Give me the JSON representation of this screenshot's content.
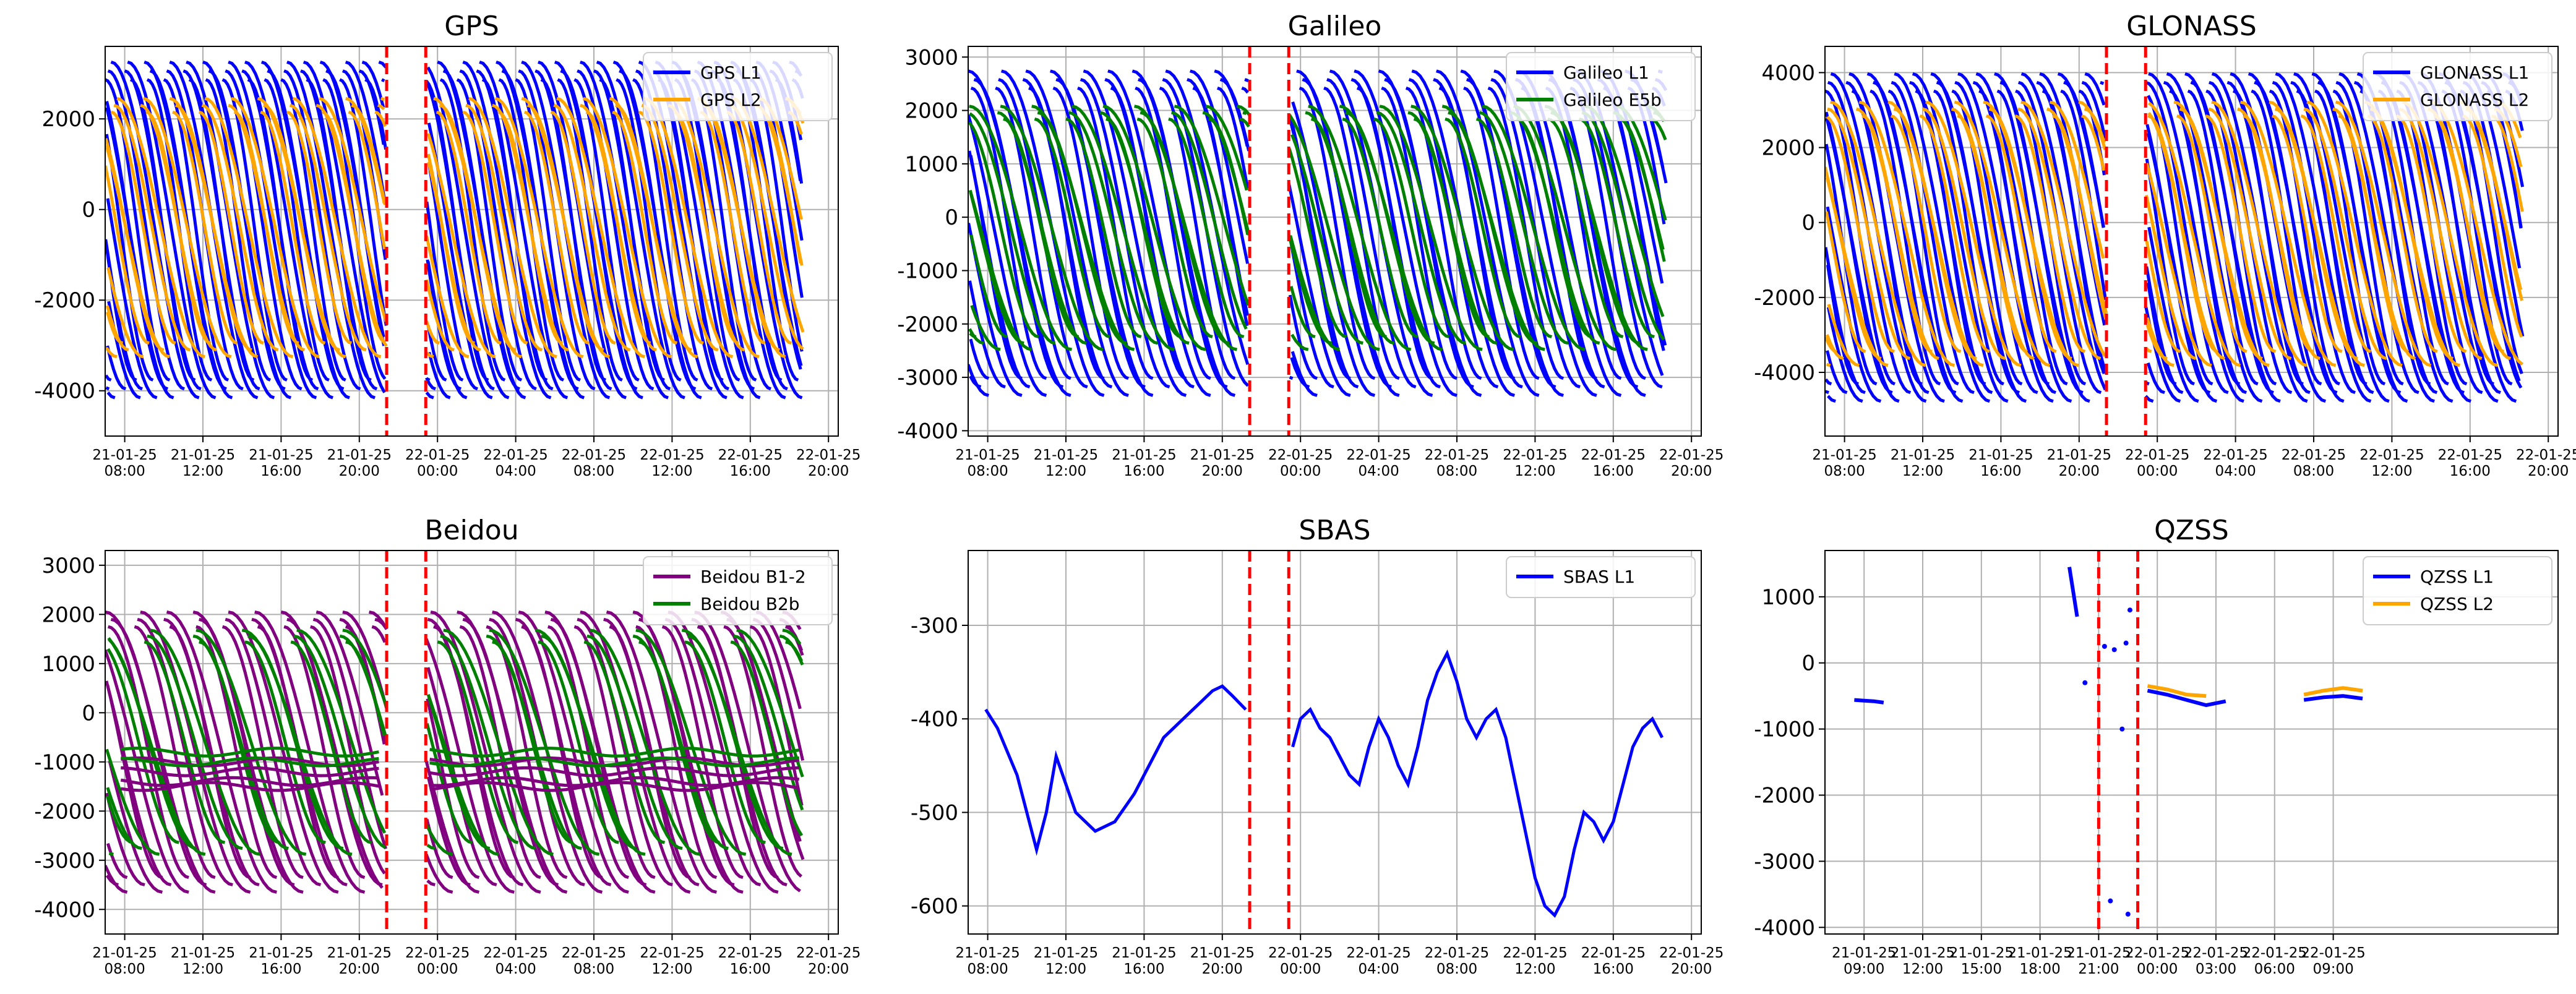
{
  "chart_data": [
    {
      "type": "line",
      "title": "GPS",
      "ylim": [
        -5000,
        3600
      ],
      "yticks": [
        2000,
        0,
        -2000,
        -4000
      ],
      "xlim": [
        7.0,
        44.5
      ],
      "xticks": [
        8,
        12,
        16,
        20,
        24,
        28,
        32,
        36,
        40,
        44
      ],
      "xticklabels": [
        [
          "21-01-25",
          "08:00"
        ],
        [
          "21-01-25",
          "12:00"
        ],
        [
          "21-01-25",
          "16:00"
        ],
        [
          "21-01-25",
          "20:00"
        ],
        [
          "22-01-25",
          "00:00"
        ],
        [
          "22-01-25",
          "04:00"
        ],
        [
          "22-01-25",
          "08:00"
        ],
        [
          "22-01-25",
          "12:00"
        ],
        [
          "22-01-25",
          "16:00"
        ],
        [
          "22-01-25",
          "20:00"
        ]
      ],
      "grid": true,
      "legend_position": "top-right",
      "vlines": [
        21.4,
        23.4
      ],
      "gap": [
        21.4,
        23.4
      ],
      "series": [
        {
          "name": "GPS L1",
          "color": "#0000ff",
          "pattern": "descending-arcs",
          "amplitude": 3900,
          "offset": -450,
          "period": 6.0,
          "phase": 0.0,
          "count": 6
        },
        {
          "name": "GPS L2",
          "color": "#ffa500",
          "pattern": "descending-arcs",
          "amplitude": 3000,
          "offset": -400,
          "period": 6.0,
          "phase": 1.8,
          "count": 4
        }
      ]
    },
    {
      "type": "line",
      "title": "Galileo",
      "ylim": [
        -4100,
        3200
      ],
      "yticks": [
        3000,
        2000,
        1000,
        0,
        -1000,
        -2000,
        -3000,
        -4000
      ],
      "xlim": [
        7.0,
        44.5
      ],
      "xticks": [
        8,
        12,
        16,
        20,
        24,
        28,
        32,
        36,
        40,
        44
      ],
      "xticklabels": [
        [
          "21-01-25",
          "08:00"
        ],
        [
          "21-01-25",
          "12:00"
        ],
        [
          "21-01-25",
          "16:00"
        ],
        [
          "21-01-25",
          "20:00"
        ],
        [
          "22-01-25",
          "00:00"
        ],
        [
          "22-01-25",
          "04:00"
        ],
        [
          "22-01-25",
          "08:00"
        ],
        [
          "22-01-25",
          "12:00"
        ],
        [
          "22-01-25",
          "16:00"
        ],
        [
          "22-01-25",
          "20:00"
        ]
      ],
      "grid": true,
      "legend_position": "top-right",
      "vlines": [
        21.4,
        23.4
      ],
      "gap": [
        21.4,
        23.4
      ],
      "series": [
        {
          "name": "Galileo L1",
          "color": "#0000ff",
          "pattern": "descending-arcs",
          "amplitude": 3200,
          "offset": -300,
          "period": 7.0,
          "phase": 0.0,
          "count": 5
        },
        {
          "name": "Galileo E5b",
          "color": "#008000",
          "pattern": "descending-arcs",
          "amplitude": 2400,
          "offset": -200,
          "period": 7.0,
          "phase": 1.5,
          "count": 4
        }
      ]
    },
    {
      "type": "line",
      "title": "GLONASS",
      "ylim": [
        -5700,
        4700
      ],
      "yticks": [
        4000,
        2000,
        0,
        -2000,
        -4000
      ],
      "xlim": [
        7.0,
        44.5
      ],
      "xticks": [
        8,
        12,
        16,
        20,
        24,
        28,
        32,
        36,
        40,
        44
      ],
      "xticklabels": [
        [
          "21-01-25",
          "08:00"
        ],
        [
          "21-01-25",
          "12:00"
        ],
        [
          "21-01-25",
          "16:00"
        ],
        [
          "21-01-25",
          "20:00"
        ],
        [
          "22-01-25",
          "00:00"
        ],
        [
          "22-01-25",
          "04:00"
        ],
        [
          "22-01-25",
          "08:00"
        ],
        [
          "22-01-25",
          "12:00"
        ],
        [
          "22-01-25",
          "16:00"
        ],
        [
          "22-01-25",
          "20:00"
        ]
      ],
      "grid": true,
      "legend_position": "top-right",
      "vlines": [
        21.4,
        23.4
      ],
      "gap": [
        21.4,
        23.4
      ],
      "series": [
        {
          "name": "GLONASS L1",
          "color": "#0000ff",
          "pattern": "descending-arcs",
          "amplitude": 4600,
          "offset": -400,
          "period": 6.5,
          "phase": 0.0,
          "count": 6
        },
        {
          "name": "GLONASS L2",
          "color": "#ffa500",
          "pattern": "descending-arcs",
          "amplitude": 3700,
          "offset": -300,
          "period": 6.5,
          "phase": 1.6,
          "count": 4
        }
      ]
    },
    {
      "type": "line",
      "title": "Beidou",
      "ylim": [
        -4500,
        3300
      ],
      "yticks": [
        3000,
        2000,
        1000,
        0,
        -1000,
        -2000,
        -3000,
        -4000
      ],
      "xlim": [
        7.0,
        44.5
      ],
      "xticks": [
        8,
        12,
        16,
        20,
        24,
        28,
        32,
        36,
        40,
        44
      ],
      "xticklabels": [
        [
          "21-01-25",
          "08:00"
        ],
        [
          "21-01-25",
          "12:00"
        ],
        [
          "21-01-25",
          "16:00"
        ],
        [
          "21-01-25",
          "20:00"
        ],
        [
          "22-01-25",
          "00:00"
        ],
        [
          "22-01-25",
          "04:00"
        ],
        [
          "22-01-25",
          "08:00"
        ],
        [
          "22-01-25",
          "12:00"
        ],
        [
          "22-01-25",
          "16:00"
        ],
        [
          "22-01-25",
          "20:00"
        ]
      ],
      "grid": true,
      "legend_position": "top-right",
      "vlines": [
        21.4,
        23.4
      ],
      "gap": [
        21.4,
        23.4
      ],
      "series": [
        {
          "name": "Beidou B1-2",
          "color": "#800080",
          "pattern": "descending-arcs",
          "amplitude": 3000,
          "offset": -800,
          "period": 7.5,
          "phase": 0.0,
          "count": 5
        },
        {
          "name": "Beidou B2b",
          "color": "#008000",
          "pattern": "descending-arcs",
          "amplitude": 2400,
          "offset": -600,
          "period": 7.5,
          "phase": 2.0,
          "count": 3
        }
      ],
      "flat_series": [
        {
          "color": "#800080",
          "y": [
            -1000,
            -1200,
            -1400,
            -1500
          ]
        },
        {
          "color": "#008000",
          "y": [
            -800,
            -1000
          ]
        }
      ]
    },
    {
      "type": "line",
      "title": "SBAS",
      "ylim": [
        -630,
        -220
      ],
      "yticks": [
        -300,
        -400,
        -500,
        -600
      ],
      "xlim": [
        7.0,
        44.5
      ],
      "xticks": [
        8,
        12,
        16,
        20,
        24,
        28,
        32,
        36,
        40,
        44
      ],
      "xticklabels": [
        [
          "21-01-25",
          "08:00"
        ],
        [
          "21-01-25",
          "12:00"
        ],
        [
          "21-01-25",
          "16:00"
        ],
        [
          "21-01-25",
          "20:00"
        ],
        [
          "22-01-25",
          "00:00"
        ],
        [
          "22-01-25",
          "04:00"
        ],
        [
          "22-01-25",
          "08:00"
        ],
        [
          "22-01-25",
          "12:00"
        ],
        [
          "22-01-25",
          "16:00"
        ],
        [
          "22-01-25",
          "20:00"
        ]
      ],
      "grid": true,
      "legend_position": "top-right",
      "vlines": [
        21.4,
        23.4
      ],
      "series": [
        {
          "name": "SBAS L1",
          "color": "#0000ff",
          "pattern": "points",
          "x": [
            7.9,
            8.5,
            9.5,
            10.5,
            11.0,
            11.5,
            12.0,
            12.5,
            13.5,
            14.5,
            15.5,
            16.5,
            17.0,
            17.5,
            18.0,
            18.5,
            19.0,
            19.5,
            20.0,
            20.5,
            21.2
          ],
          "y": [
            -390,
            -410,
            -460,
            -540,
            -500,
            -440,
            -470,
            -500,
            -520,
            -510,
            -480,
            -440,
            -420,
            -410,
            -400,
            -390,
            -380,
            -370,
            -365,
            -375,
            -390
          ],
          "x2": [
            23.6,
            24.0,
            24.5,
            25.0,
            25.5,
            26.0,
            26.5,
            27.0,
            27.5,
            28.0,
            28.5,
            29.0,
            29.5,
            30.0,
            30.5,
            31.0,
            31.5,
            32.0,
            32.5,
            33.0,
            33.5,
            34.0,
            34.5,
            35.0,
            35.5,
            36.0,
            36.5,
            37.0,
            37.5,
            38.0,
            38.5,
            39.0,
            39.5,
            40.0,
            40.5,
            41.0,
            41.5,
            42.0,
            42.5
          ],
          "y2": [
            -430,
            -400,
            -390,
            -410,
            -420,
            -440,
            -460,
            -470,
            -430,
            -400,
            -420,
            -450,
            -470,
            -430,
            -380,
            -350,
            -330,
            -360,
            -400,
            -420,
            -400,
            -390,
            -420,
            -470,
            -520,
            -570,
            -600,
            -610,
            -590,
            -540,
            -500,
            -510,
            -530,
            -510,
            -470,
            -430,
            -410,
            -400,
            -420
          ]
        }
      ]
    },
    {
      "type": "scatter",
      "title": "QZSS",
      "ylim": [
        -4100,
        1700
      ],
      "yticks": [
        1000,
        0,
        -1000,
        -2000,
        -3000,
        -4000
      ],
      "xlim": [
        7.0,
        44.5
      ],
      "xticks": [
        9,
        12,
        15,
        18,
        21,
        24,
        27,
        30,
        33
      ],
      "xticklabels": [
        [
          "21-01-25",
          "09:00"
        ],
        [
          "21-01-25",
          "12:00"
        ],
        [
          "21-01-25",
          "15:00"
        ],
        [
          "21-01-25",
          "18:00"
        ],
        [
          "21-01-25",
          "21:00"
        ],
        [
          "22-01-25",
          "00:00"
        ],
        [
          "22-01-25",
          "03:00"
        ],
        [
          "22-01-25",
          "06:00"
        ],
        [
          "22-01-25",
          "09:00"
        ]
      ],
      "grid": true,
      "legend_position": "top-right",
      "vlines": [
        21.0,
        23.0
      ],
      "series": [
        {
          "name": "QZSS L1",
          "color": "#0000ff",
          "segments": [
            {
              "x": [
                8.5,
                9.0,
                9.5,
                10.0
              ],
              "y": [
                -560,
                -570,
                -580,
                -600
              ]
            },
            {
              "x": [
                19.5,
                19.9
              ],
              "y": [
                1450,
                700
              ]
            },
            {
              "x": [
                23.5,
                24.5,
                25.5,
                26.5,
                27.5
              ],
              "y": [
                -420,
                -480,
                -560,
                -640,
                -580
              ]
            },
            {
              "x": [
                31.5,
                32.5,
                33.5,
                34.5
              ],
              "y": [
                -560,
                -520,
                -500,
                -540
              ]
            }
          ],
          "points": [
            [
              20.3,
              -300
            ],
            [
              21.3,
              250
            ],
            [
              21.8,
              200
            ],
            [
              22.4,
              300
            ],
            [
              22.6,
              800
            ],
            [
              22.2,
              -1000
            ],
            [
              21.6,
              -3600
            ],
            [
              22.5,
              -3800
            ]
          ]
        },
        {
          "name": "QZSS L2",
          "color": "#ffa500",
          "segments": [
            {
              "x": [
                23.5,
                24.5,
                25.5,
                26.5
              ],
              "y": [
                -350,
                -400,
                -480,
                -500
              ]
            },
            {
              "x": [
                31.5,
                32.5,
                33.5,
                34.5
              ],
              "y": [
                -480,
                -420,
                -380,
                -420
              ]
            }
          ],
          "points": []
        }
      ]
    }
  ]
}
